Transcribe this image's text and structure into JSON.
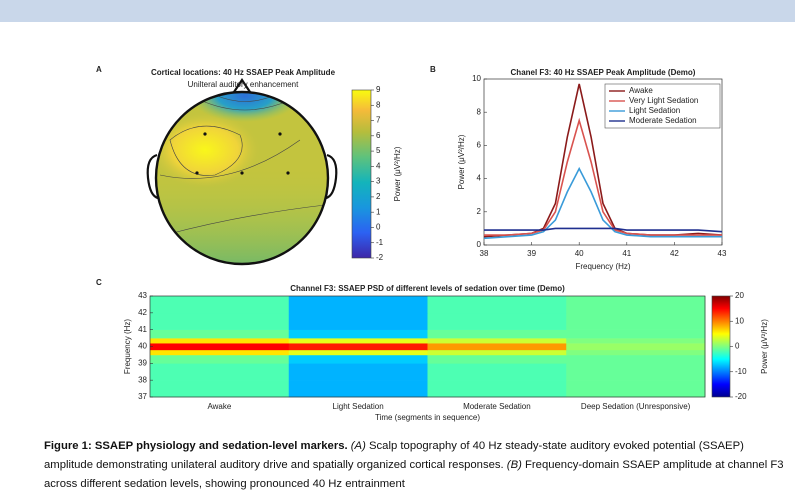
{
  "chart_data": [
    {
      "type": "topomap",
      "panel": "A",
      "title": "Cortical locations: 40 Hz SSAEP Peak Amplitude",
      "subtitle": "Unilteral auditory enhancement",
      "colorbar": {
        "lim": [
          -2,
          9
        ],
        "ticks": [
          -2,
          -1,
          0,
          1,
          2,
          3,
          4,
          5,
          6,
          7,
          8,
          9
        ],
        "label": "Power (μV²/Hz)"
      }
    },
    {
      "type": "line",
      "panel": "B",
      "title": "Chanel F3: 40 Hz SSAEP Peak Amplitude (Demo)",
      "xlabel": "Frequency (Hz)",
      "ylabel": "Power (μV²/Hz)",
      "x": [
        38,
        38.5,
        39,
        39.25,
        39.5,
        39.75,
        40,
        40.25,
        40.5,
        40.75,
        41,
        41.5,
        42,
        42.5,
        43
      ],
      "xlim": [
        38,
        43
      ],
      "xticks": [
        38,
        39,
        40,
        41,
        42,
        43
      ],
      "ylim": [
        0,
        10
      ],
      "yticks": [
        0,
        2,
        4,
        6,
        8,
        10
      ],
      "legend": "upper right",
      "series": [
        {
          "name": "Awake",
          "color": "#8b1a1a",
          "values": [
            0.5,
            0.6,
            0.7,
            1.0,
            2.5,
            6.5,
            9.7,
            6.5,
            2.5,
            1.0,
            0.7,
            0.6,
            0.6,
            0.7,
            0.6
          ]
        },
        {
          "name": "Very Light Sedation",
          "color": "#d9534f",
          "values": [
            0.6,
            0.6,
            0.7,
            0.9,
            2.0,
            5.0,
            7.5,
            5.0,
            2.0,
            0.9,
            0.7,
            0.6,
            0.6,
            0.6,
            0.6
          ]
        },
        {
          "name": "Light Sedation",
          "color": "#3a9bd9",
          "values": [
            0.4,
            0.5,
            0.6,
            0.8,
            1.5,
            3.2,
            4.6,
            3.2,
            1.5,
            0.8,
            0.6,
            0.5,
            0.5,
            0.5,
            0.5
          ]
        },
        {
          "name": "Moderate Sedation",
          "color": "#1f2f8f",
          "values": [
            0.9,
            0.9,
            0.9,
            0.9,
            1.0,
            1.0,
            1.0,
            1.0,
            1.0,
            1.0,
            0.9,
            0.9,
            0.9,
            0.9,
            0.8
          ]
        }
      ]
    },
    {
      "type": "heatmap",
      "panel": "C",
      "title": "Channel F3: SSAEP PSD of different levels of sedation over time (Demo)",
      "xlabel": "Time (segments in sequence)",
      "ylabel": "Frequency (Hz)",
      "categories": [
        "Awake",
        "Light Sedation",
        "Moderate Sedation",
        "Deep Sedation (Unresponsive)"
      ],
      "ybins": [
        37,
        38,
        39,
        39.5,
        39.8,
        40.2,
        40.5,
        41,
        42,
        43
      ],
      "ylim": [
        37,
        43
      ],
      "yticks": [
        37,
        38,
        39,
        40,
        41,
        42,
        43
      ],
      "z": [
        [
          -2,
          -8,
          -2,
          -1
        ],
        [
          -2,
          -8,
          -2,
          -1
        ],
        [
          -1,
          -7,
          -1,
          -1
        ],
        [
          6,
          4,
          3,
          0
        ],
        [
          15,
          14,
          9,
          1
        ],
        [
          6,
          4,
          3,
          0
        ],
        [
          -1,
          -7,
          -1,
          -1
        ],
        [
          -2,
          -8,
          -2,
          -1
        ],
        [
          -2,
          -8,
          -2,
          -1
        ]
      ],
      "colorbar": {
        "lim": [
          -20,
          20
        ],
        "ticks": [
          -20,
          -10,
          0,
          10,
          20
        ],
        "label": "Power (μV²/Hz)"
      }
    }
  ],
  "caption": {
    "runs": [
      {
        "text": "Figure 1: SSAEP physiology and sedation-level markers.",
        "style": "bold"
      },
      {
        "text": " (A)",
        "style": "italic"
      },
      {
        "text": " Scalp topography of 40 Hz steady-state auditory evoked potential (SSAEP) amplitude demonstrating unilateral auditory drive and spatially organized cortical responses.",
        "style": "normal"
      },
      {
        "text": " (B)",
        "style": "italic"
      },
      {
        "text": " Frequency-domain SSAEP amplitude at channel F3 across different sedation levels, showing pronounced 40 Hz entrainment",
        "style": "normal"
      }
    ]
  }
}
